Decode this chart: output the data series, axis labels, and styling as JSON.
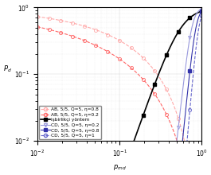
{
  "xlabel": "p_{md}",
  "ylabel": "P_d",
  "legend_entries": [
    "AB, 5/5, Q=5, η=0.8",
    "AB, 5/5, Q=5, η=0.2",
    "işbirlikçi yöntem",
    "CD, 5/5, Q=5, η=0.2",
    "CD, 5/5, Q=5, η=0.8",
    "CD, 5/5, Q=5, η=1"
  ],
  "colors": {
    "AB_08": "#ffaaaa",
    "AB_02": "#ff6666",
    "isb": "#000000",
    "CD_02": "#9999dd",
    "CD_08": "#3333aa",
    "CD_1": "#6666cc"
  },
  "background_color": "#ffffff",
  "grid_color": "#d0d0d0"
}
